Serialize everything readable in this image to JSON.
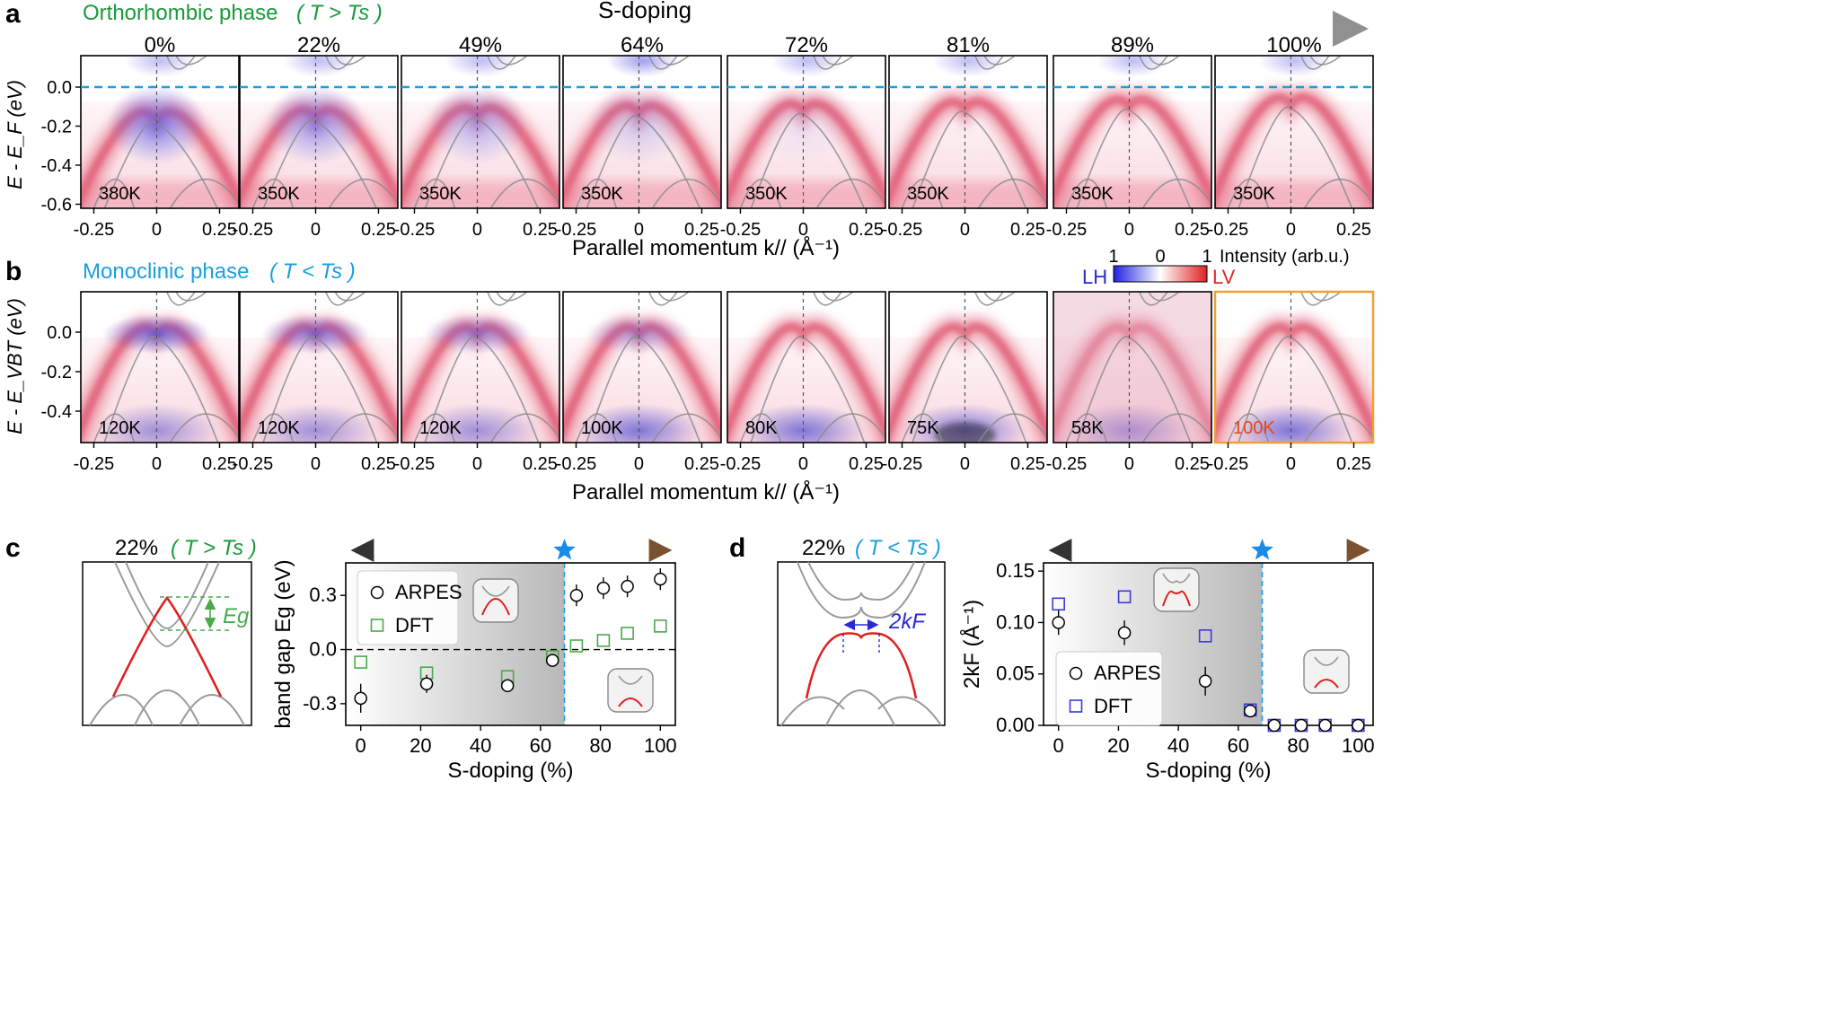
{
  "colors": {
    "ortho_green": "#1a9a3a",
    "mono_blue": "#1aa0e0",
    "lh_blue": "#2a2ad8",
    "lv_red": "#e02828",
    "dash_blue": "#1aa0e0",
    "orange": "#f0a030",
    "dft_green": "#4aaa4a",
    "dft_blue": "#3a3ad8",
    "band_red": "#e02020",
    "band_gray": "#9a9a9a"
  },
  "panel_a": {
    "letter": "a",
    "phase_label": "Orthorhombic phase",
    "phase_condition": "( T > Ts )",
    "arrow_label": "S-doping",
    "y_axis_label": "E - E_F (eV)",
    "y_ticks": [
      "0.0",
      "-0.2",
      "-0.4",
      "-0.6"
    ],
    "x_ticks": [
      "-0.25",
      "0",
      "0.25"
    ],
    "x_axis_label": "Parallel momentum k// (Å⁻¹)",
    "dopings": [
      "0%",
      "22%",
      "49%",
      "64%",
      "72%",
      "81%",
      "89%",
      "100%"
    ],
    "temperatures": [
      "380K",
      "350K",
      "350K",
      "350K",
      "350K",
      "350K",
      "350K",
      "350K"
    ]
  },
  "panel_b": {
    "letter": "b",
    "phase_label": "Monoclinic phase",
    "phase_condition": "( T < Ts )",
    "y_axis_label": "E - E_VBT (eV)",
    "y_ticks": [
      "0.0",
      "-0.2",
      "-0.4"
    ],
    "x_ticks": [
      "-0.25",
      "0",
      "0.25"
    ],
    "x_axis_label": "Parallel momentum k// (Å⁻¹)",
    "temperatures": [
      "120K",
      "120K",
      "120K",
      "100K",
      "80K",
      "75K",
      "58K",
      "100K"
    ]
  },
  "colorbar": {
    "left_tick": "1",
    "mid_tick": "0",
    "right_tick": "1",
    "label": "Intensity (arb.u.)",
    "lh": "LH",
    "lv": "LV"
  },
  "panel_c": {
    "letter": "c",
    "schematic_title": "22%",
    "schematic_condition": "( T > Ts )",
    "eg_label": "Eg"
  },
  "panel_d": {
    "letter": "d",
    "schematic_title": "22%",
    "schematic_condition": "( T < Ts )",
    "kf_label": "2kF"
  },
  "chart_data": [
    {
      "type": "scatter",
      "panel": "c",
      "xlabel": "S-doping (%)",
      "ylabel": "band gap Eg (eV)",
      "xlim": [
        -5,
        105
      ],
      "ylim": [
        -0.42,
        0.48
      ],
      "x_ticks": [
        0,
        20,
        40,
        60,
        80,
        100
      ],
      "y_ticks": [
        -0.3,
        0.0,
        0.3
      ],
      "y_tick_labels": [
        "-0.3",
        "0.0",
        "0.3"
      ],
      "transition_x": 68,
      "legend": [
        "ARPES",
        "DFT"
      ],
      "series": [
        {
          "name": "ARPES",
          "marker": "circle",
          "x": [
            0,
            22,
            49,
            64,
            72,
            81,
            89,
            100
          ],
          "y": [
            -0.27,
            -0.19,
            -0.2,
            -0.06,
            0.3,
            0.34,
            0.35,
            0.39
          ],
          "err": [
            0.08,
            0.05,
            0.02,
            0.02,
            0.06,
            0.06,
            0.06,
            0.06
          ]
        },
        {
          "name": "DFT",
          "marker": "square",
          "x": [
            0,
            22,
            49,
            64,
            72,
            81,
            89,
            100
          ],
          "y": [
            -0.07,
            -0.13,
            -0.15,
            -0.04,
            0.02,
            0.05,
            0.09,
            0.13
          ]
        }
      ]
    },
    {
      "type": "scatter",
      "panel": "d",
      "xlabel": "S-doping (%)",
      "ylabel": "2kF (Å⁻¹)",
      "xlim": [
        -5,
        105
      ],
      "ylim": [
        0,
        0.158
      ],
      "x_ticks": [
        0,
        20,
        40,
        60,
        80,
        100
      ],
      "y_ticks": [
        0.0,
        0.05,
        0.1,
        0.15
      ],
      "y_tick_labels": [
        "0.00",
        "0.05",
        "0.10",
        "0.15"
      ],
      "transition_x": 68,
      "legend": [
        "ARPES",
        "DFT"
      ],
      "series": [
        {
          "name": "ARPES",
          "marker": "circle",
          "x": [
            0,
            22,
            49,
            64,
            72,
            81,
            89,
            100
          ],
          "y": [
            0.1,
            0.09,
            0.043,
            0.014,
            0.0,
            0.0,
            0.0,
            0.0
          ],
          "err": [
            0.012,
            0.012,
            0.014,
            0.006,
            0,
            0,
            0,
            0
          ]
        },
        {
          "name": "DFT",
          "marker": "square",
          "x": [
            0,
            22,
            49,
            64,
            72,
            81,
            89,
            100
          ],
          "y": [
            0.118,
            0.125,
            0.087,
            0.015,
            0.0,
            0.0,
            0.0,
            0.0
          ]
        }
      ]
    }
  ]
}
